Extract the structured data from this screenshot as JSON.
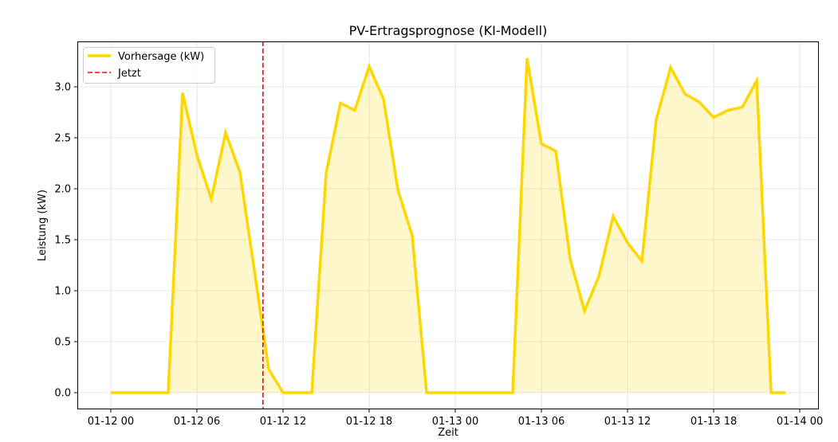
{
  "chart_data": {
    "type": "area",
    "title": "PV-Ertragsprognose (KI-Modell)",
    "xlabel": "Zeit",
    "ylabel": "Leistung (kW)",
    "x_start": "2024-01-12 00:00",
    "x_step_hours": 1,
    "x_ticks": [
      {
        "hour": 0,
        "label": "01-12 00"
      },
      {
        "hour": 6,
        "label": "01-12 06"
      },
      {
        "hour": 12,
        "label": "01-12 12"
      },
      {
        "hour": 18,
        "label": "01-12 18"
      },
      {
        "hour": 24,
        "label": "01-13 00"
      },
      {
        "hour": 30,
        "label": "01-13 06"
      },
      {
        "hour": 36,
        "label": "01-13 12"
      },
      {
        "hour": 42,
        "label": "01-13 18"
      },
      {
        "hour": 48,
        "label": "01-14 00"
      }
    ],
    "y_ticks": [
      0.0,
      0.5,
      1.0,
      1.5,
      2.0,
      2.5,
      3.0
    ],
    "y_tick_labels": [
      "0.0",
      "0.5",
      "1.0",
      "1.5",
      "2.0",
      "2.5",
      "3.0"
    ],
    "xlim_hours": [
      -2.33,
      49.33
    ],
    "ylim": [
      -0.164,
      3.445
    ],
    "grid": true,
    "legend_placement": "top-left",
    "series": [
      {
        "name": "Vorhersage (kW)",
        "color": "#FFD700",
        "fill_color": "#FFD700",
        "values": [
          0,
          0,
          0,
          0,
          0,
          2.94,
          2.33,
          1.9,
          2.55,
          2.16,
          1.2,
          0.23,
          0,
          0,
          0,
          2.15,
          2.84,
          2.77,
          3.2,
          2.88,
          1.99,
          1.54,
          0,
          0,
          0,
          0,
          0,
          0,
          0,
          3.28,
          2.44,
          2.37,
          1.31,
          0.8,
          1.14,
          1.73,
          1.47,
          1.29,
          2.68,
          3.19,
          2.93,
          2.85,
          2.7,
          2.77,
          2.8,
          3.06,
          0,
          0
        ]
      }
    ],
    "annotations": [
      {
        "name": "Jetzt",
        "type": "vline",
        "hour": 10.6,
        "color": "#FF0000",
        "style": "dashed"
      }
    ]
  }
}
